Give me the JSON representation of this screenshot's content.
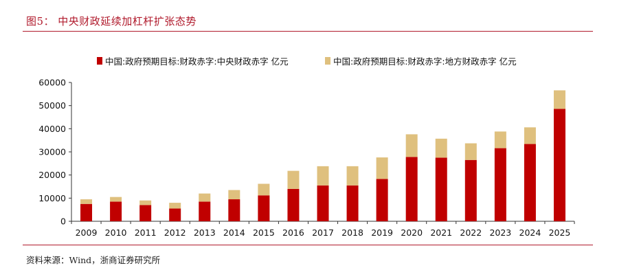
{
  "header": {
    "title": "图5：  中央财政延续加杠杆扩张态势"
  },
  "footer": {
    "source": "资料来源：Wind，浙商证券研究所"
  },
  "colors": {
    "central": "#c00000",
    "local": "#dfc07e",
    "accent": "#b0192b"
  },
  "chart_data": {
    "type": "bar",
    "stacked": true,
    "categories": [
      "2009",
      "2010",
      "2011",
      "2012",
      "2013",
      "2014",
      "2015",
      "2016",
      "2017",
      "2018",
      "2019",
      "2020",
      "2021",
      "2022",
      "2023",
      "2024",
      "2025"
    ],
    "series": [
      {
        "name": "中国:政府预期目标:财政赤字:中央财政赤字 亿元",
        "values": [
          7500,
          8500,
          7000,
          5500,
          8500,
          9500,
          11200,
          14000,
          15500,
          15500,
          18300,
          27800,
          27500,
          26500,
          31600,
          33400,
          48600
        ]
      },
      {
        "name": "中国:政府预期目标:财政赤字:地方财政赤字 亿元",
        "values": [
          2000,
          2000,
          2000,
          2500,
          3500,
          4000,
          5000,
          7800,
          8300,
          8300,
          9300,
          9800,
          8200,
          7200,
          7200,
          7200,
          8000
        ]
      }
    ],
    "yticks": [
      "0",
      "10000",
      "20000",
      "30000",
      "40000",
      "50000",
      "60000"
    ],
    "ylim": [
      0,
      60000
    ],
    "legend_position": "top"
  }
}
